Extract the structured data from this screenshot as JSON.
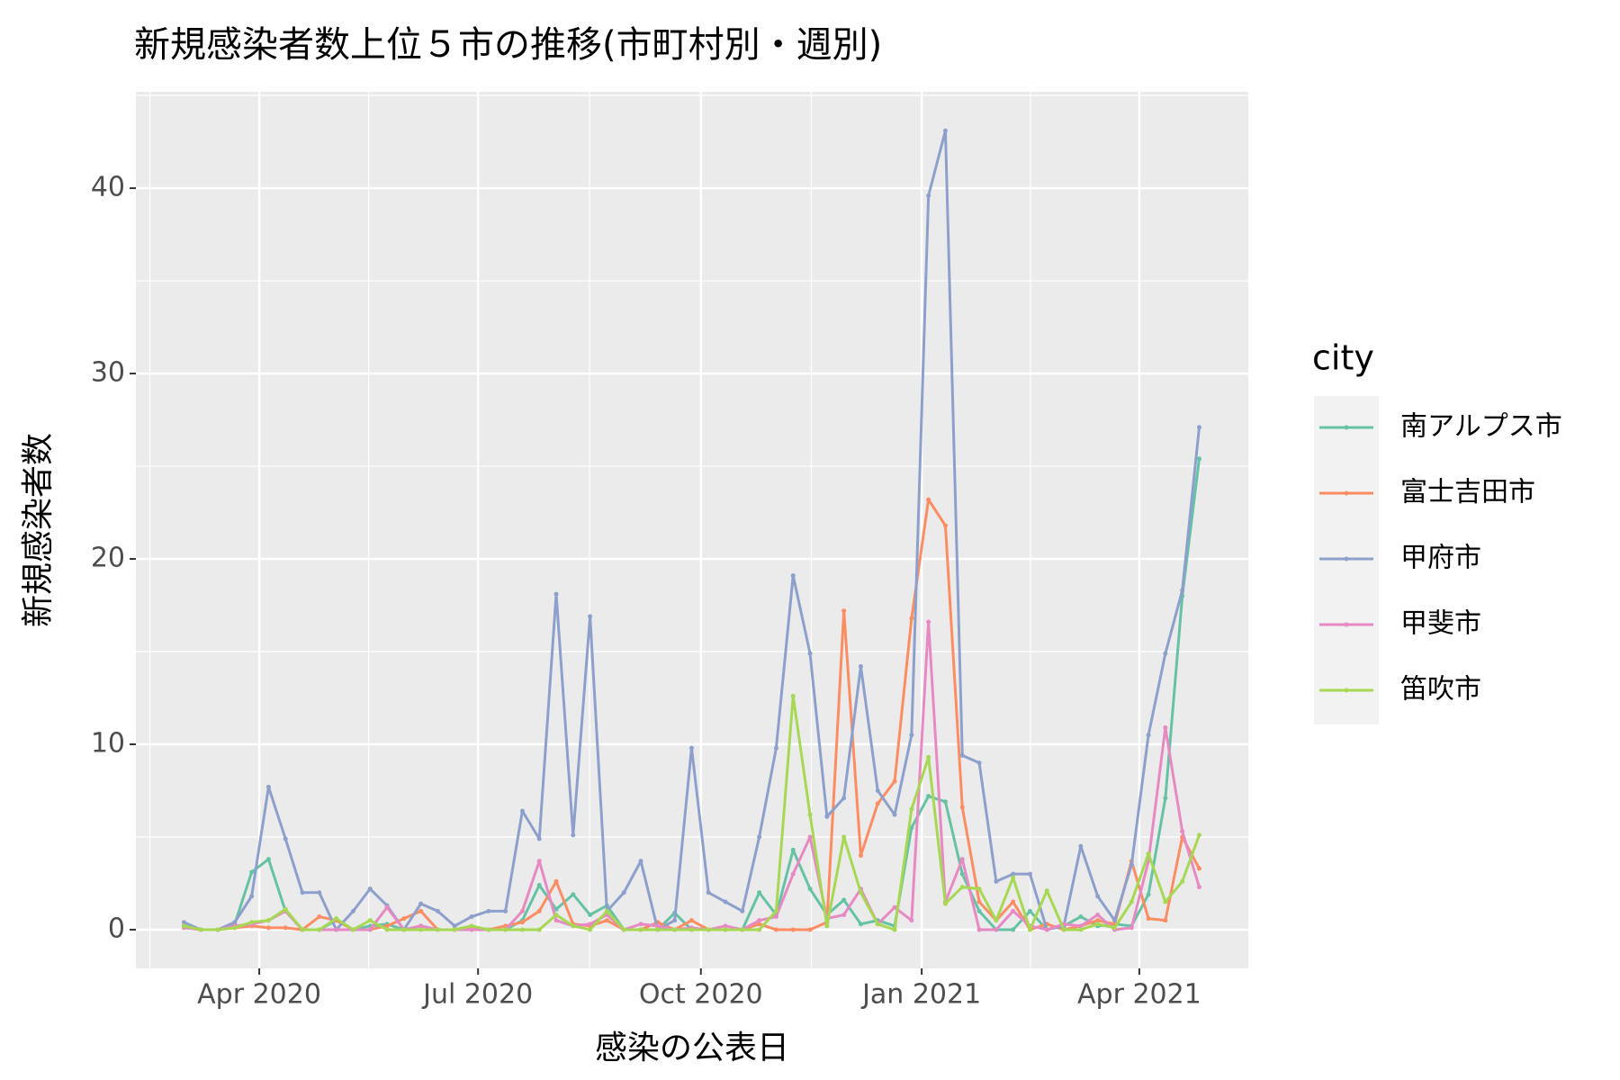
{
  "chart_data": {
    "type": "line",
    "title": "新規感染者数上位５市の推移(市町村別・週別)",
    "x_label": "感染の公表日",
    "y_label": "新規感染者数",
    "legend_title": "city",
    "legend_position": "right",
    "grid": true,
    "x": [
      0,
      1,
      2,
      3,
      4,
      5,
      6,
      7,
      8,
      9,
      10,
      11,
      12,
      13,
      14,
      15,
      16,
      17,
      18,
      19,
      20,
      21,
      22,
      23,
      24,
      25,
      26,
      27,
      28,
      29,
      30,
      31,
      32,
      33,
      34,
      35,
      36,
      37,
      38,
      39,
      40,
      41,
      42,
      43,
      44,
      45,
      46,
      47,
      48,
      49,
      50,
      51,
      52,
      53,
      54,
      55,
      56,
      57,
      58,
      59,
      60
    ],
    "xlim": [
      -2.84,
      62.9
    ],
    "xticks": [
      {
        "value": 4.45,
        "label": "Apr 2020"
      },
      {
        "value": 17.38,
        "label": "Jul 2020"
      },
      {
        "value": 30.55,
        "label": "Oct 2020"
      },
      {
        "value": 43.6,
        "label": "Jan 2021"
      },
      {
        "value": 56.46,
        "label": "Apr 2021"
      }
    ],
    "ylim": [
      -2.09,
      45.2
    ],
    "yticks": [
      0,
      10,
      20,
      30,
      40
    ],
    "series": [
      {
        "name": "南アルプス市",
        "color": "#66c2a5",
        "values": [
          0.2,
          0,
          0,
          0.3,
          3.1,
          3.8,
          1,
          0,
          0,
          0.5,
          0,
          0.2,
          0.3,
          0,
          0.2,
          0,
          0,
          0.1,
          0,
          0,
          0.5,
          2.4,
          1.1,
          1.9,
          0.8,
          1.3,
          0,
          0,
          0,
          0.9,
          0,
          0,
          0,
          0,
          2,
          0.8,
          4.3,
          2.2,
          0.8,
          1.6,
          0.3,
          0.5,
          0.2,
          5.5,
          7.2,
          6.9,
          3,
          1,
          0,
          0,
          1,
          0,
          0.2,
          0.7,
          0.2,
          0.3,
          0.2,
          1.9,
          7.1,
          18,
          25.4
        ]
      },
      {
        "name": "富士吉田市",
        "color": "#fc8d62",
        "values": [
          0.2,
          0,
          0,
          0.1,
          0.2,
          0.1,
          0.1,
          0,
          0.7,
          0.5,
          0,
          0,
          0.2,
          0.6,
          1,
          0,
          0,
          0.1,
          0,
          0.2,
          0.4,
          1,
          2.6,
          0.3,
          0.2,
          0.5,
          0,
          0,
          0.4,
          0,
          0.5,
          0,
          0,
          0,
          0.3,
          0,
          0,
          0,
          0.4,
          17.2,
          4,
          6.8,
          8,
          16.8,
          23.2,
          21.8,
          6.6,
          1.5,
          0.5,
          1.5,
          0,
          0.3,
          0,
          0.2,
          0.5,
          0.3,
          3.7,
          0.6,
          0.5,
          5,
          3.3
        ]
      },
      {
        "name": "甲府市",
        "color": "#8da0cb",
        "values": [
          0.4,
          0,
          0,
          0.4,
          1.8,
          7.7,
          4.9,
          2,
          2,
          0,
          1,
          2.2,
          1.3,
          0,
          1.4,
          1,
          0.2,
          0.7,
          1,
          1,
          6.4,
          4.9,
          18.1,
          5.1,
          16.9,
          1,
          2,
          3.7,
          0,
          0.5,
          9.8,
          2,
          1.5,
          1,
          5,
          9.8,
          19.1,
          14.9,
          6.1,
          7.1,
          14.2,
          7.5,
          6.2,
          10.5,
          39.6,
          43.1,
          9.4,
          9,
          2.6,
          3,
          3,
          0,
          0.2,
          4.5,
          1.8,
          0.5,
          3.5,
          10.5,
          14.9,
          18.3,
          27.1
        ]
      },
      {
        "name": "甲斐市",
        "color": "#e78ac3",
        "values": [
          0.1,
          0,
          0,
          0.2,
          0.3,
          0.5,
          1,
          0,
          0,
          0,
          0,
          0,
          1.2,
          0,
          0.2,
          0,
          0,
          0,
          0,
          0,
          1,
          3.7,
          0.5,
          0.2,
          0.3,
          0.8,
          0,
          0.3,
          0.2,
          0,
          0.1,
          0,
          0.2,
          0,
          0.5,
          0.7,
          3,
          5,
          0.6,
          0.8,
          2.2,
          0.3,
          1.2,
          0.5,
          16.6,
          1.5,
          3.8,
          0,
          0,
          1,
          0.2,
          0,
          0.3,
          0.2,
          0.8,
          0,
          0.1,
          3.7,
          10.9,
          5.3,
          2.3
        ]
      },
      {
        "name": "笛吹市",
        "color": "#a6d854",
        "values": [
          0.2,
          0,
          0,
          0.1,
          0.4,
          0.5,
          1.1,
          0,
          0,
          0.6,
          0,
          0.5,
          0,
          0,
          0,
          0,
          0,
          0.2,
          0,
          0,
          0,
          0,
          0.8,
          0.2,
          0,
          1,
          0,
          0,
          0,
          0,
          0,
          0,
          0,
          0,
          0,
          1,
          12.6,
          6.2,
          0.2,
          5,
          2,
          0.3,
          0,
          6.5,
          9.3,
          1.4,
          2.3,
          2.2,
          0.5,
          2.8,
          0,
          2.1,
          0,
          0,
          0.3,
          0.1,
          1.5,
          4.1,
          1.5,
          2.6,
          5.1
        ]
      }
    ]
  }
}
